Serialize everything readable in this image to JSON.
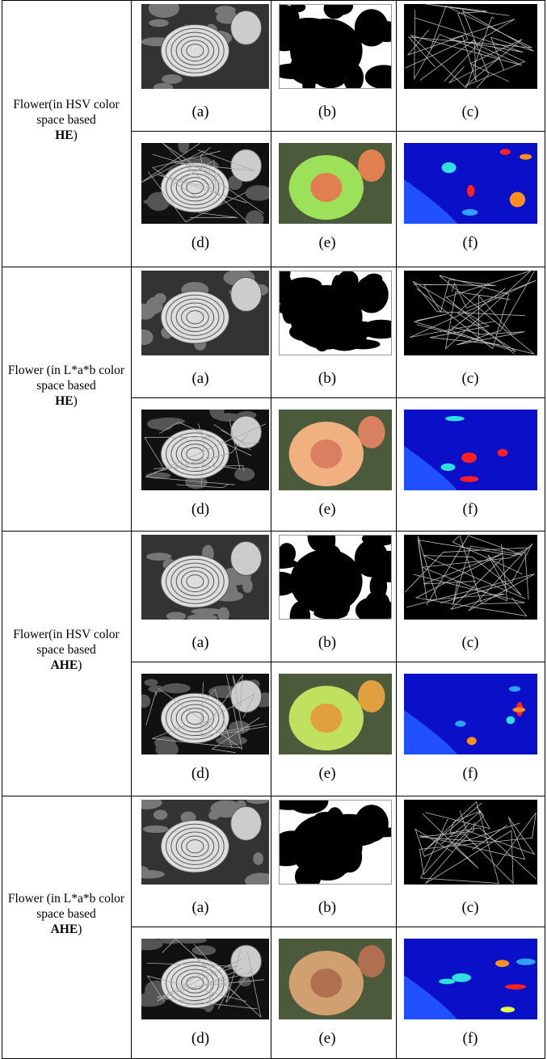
{
  "groups": [
    {
      "label": "Flower(in HSV color space based",
      "method": "HE",
      "close": ")",
      "captions": [
        "(a)",
        "(b)",
        "(c)",
        "(d)",
        "(e)",
        "(f)"
      ]
    },
    {
      "label": "Flower (in L*a*b color space based",
      "method": "HE",
      "close": ")",
      "captions": [
        "(a)",
        "(b)",
        "(c)",
        "(d)",
        "(e)",
        "(f)"
      ]
    },
    {
      "label": "Flower(in HSV color space based",
      "method": "AHE",
      "close": ")",
      "captions": [
        "(a)",
        "(b)",
        "(c)",
        "(d)",
        "(e)",
        "(f)"
      ]
    },
    {
      "label": "Flower (in L*a*b color space based",
      "method": "AHE",
      "close": ")",
      "captions": [
        "(a)",
        "(b)",
        "(c)",
        "(d)",
        "(e)",
        "(f)"
      ]
    }
  ]
}
